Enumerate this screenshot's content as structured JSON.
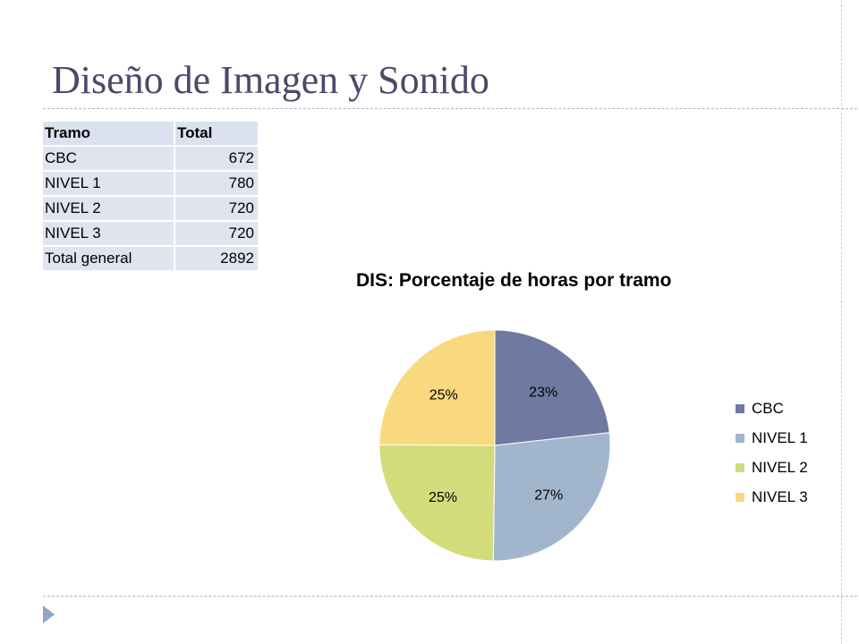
{
  "slide": {
    "title": "Diseño de Imagen y Sonido"
  },
  "table": {
    "headers": [
      "Tramo",
      "Total"
    ],
    "rows": [
      [
        "CBC",
        "672"
      ],
      [
        "NIVEL 1",
        "780"
      ],
      [
        "NIVEL 2",
        "720"
      ],
      [
        "NIVEL 3",
        "720"
      ],
      [
        "Total general",
        "2892"
      ]
    ]
  },
  "chart_data": {
    "type": "pie",
    "title": "DIS: Porcentaje de horas por tramo",
    "categories": [
      "CBC",
      "NIVEL 1",
      "NIVEL 2",
      "NIVEL 3"
    ],
    "values": [
      672,
      780,
      720,
      720
    ],
    "labels": [
      "23%",
      "27%",
      "25%",
      "25%"
    ],
    "colors": [
      "#7079a1",
      "#a1b6cc",
      "#d3dc7b",
      "#f8d980"
    ],
    "legend_position": "right"
  }
}
